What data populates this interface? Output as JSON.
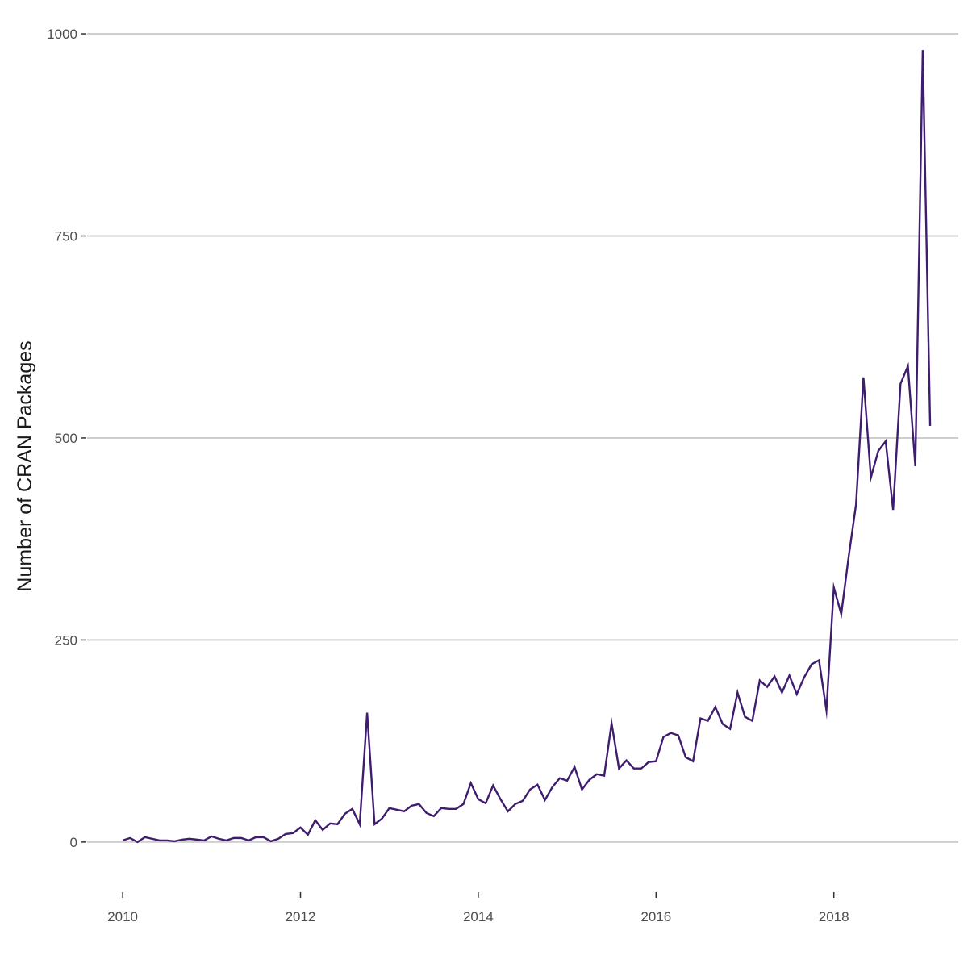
{
  "chart_data": {
    "type": "line",
    "title": "",
    "xlabel": "",
    "ylabel": "Number of CRAN Packages",
    "xlim": [
      2009.6,
      2019.4
    ],
    "ylim": [
      -60,
      1030
    ],
    "x_ticks": [
      2010,
      2012,
      2014,
      2016,
      2018
    ],
    "x_tick_labels": [
      "2010",
      "2012",
      "2014",
      "2016",
      "2018"
    ],
    "y_ticks": [
      0,
      250,
      500,
      750,
      1000
    ],
    "y_tick_labels": [
      "0",
      "250",
      "500",
      "750",
      "1000"
    ],
    "grid": "horizontal major gridlines",
    "legend": "none",
    "line_color": "#3f1d6e",
    "series": [
      {
        "x_start": 2010.0,
        "x_step": 0.08333,
        "values": [
          2,
          5,
          0,
          6,
          4,
          2,
          2,
          1,
          3,
          4,
          3,
          2,
          7,
          4,
          2,
          5,
          5,
          2,
          6,
          6,
          1,
          4,
          10,
          11,
          18,
          9,
          27,
          15,
          23,
          22,
          35,
          41,
          22,
          160,
          22,
          29,
          42,
          40,
          38,
          45,
          47,
          36,
          32,
          42,
          41,
          41,
          47,
          73,
          53,
          48,
          70,
          53,
          38,
          47,
          51,
          65,
          71,
          52,
          68,
          79,
          76,
          93,
          65,
          77,
          84,
          82,
          147,
          91,
          101,
          91,
          91,
          99,
          100,
          130,
          135,
          132,
          105,
          100,
          153,
          150,
          167,
          146,
          140,
          185,
          155,
          150,
          200,
          192,
          205,
          185,
          206,
          183,
          204,
          220,
          225,
          163,
          315,
          282,
          353,
          418,
          575,
          451,
          484,
          496,
          411,
          567,
          589,
          465,
          980,
          515
        ]
      }
    ]
  }
}
